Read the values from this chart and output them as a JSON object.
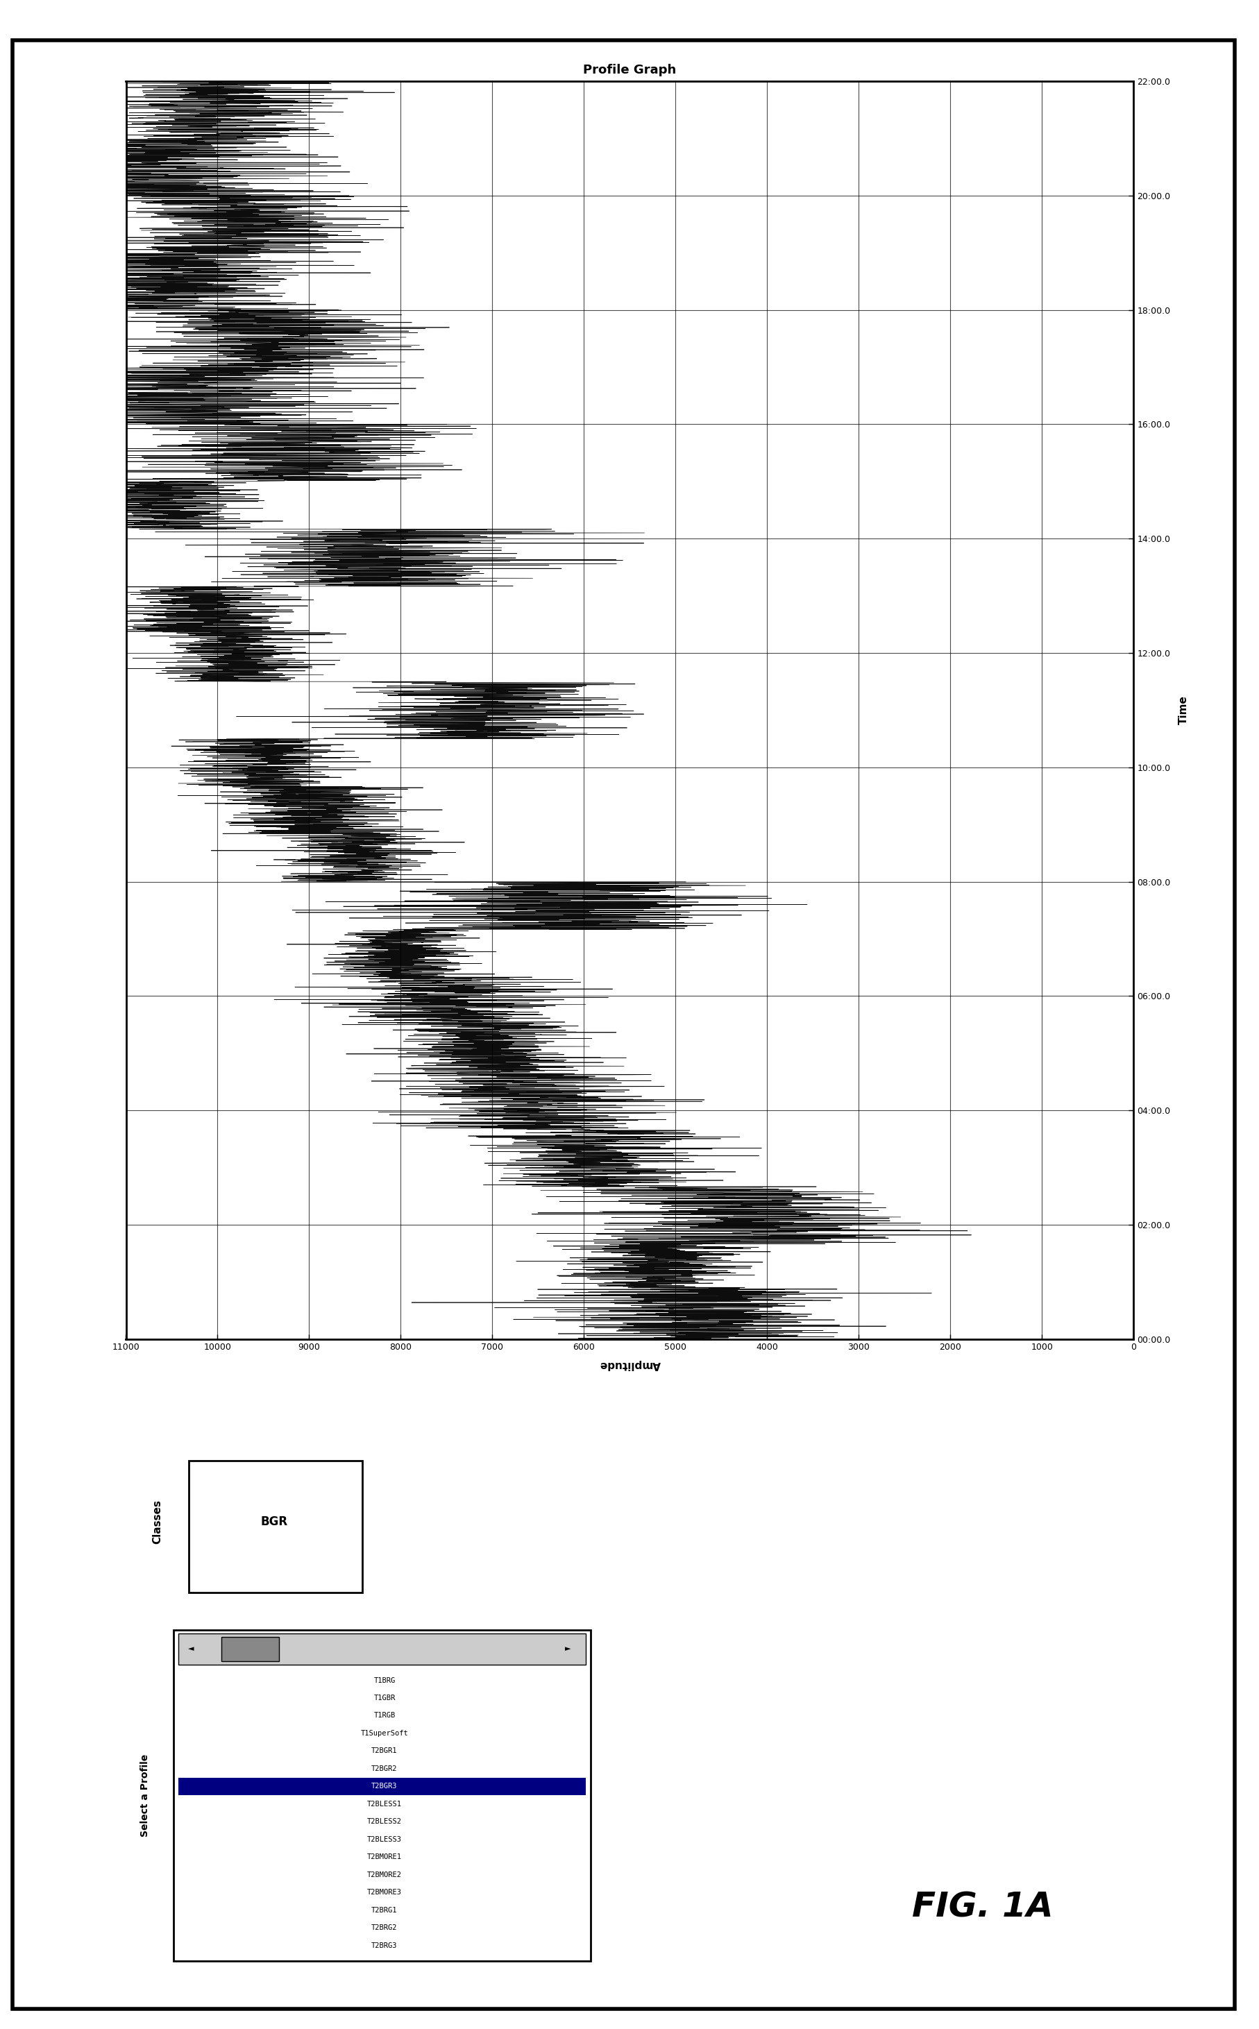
{
  "title": "Profile Graph",
  "time_label": "Time",
  "amplitude_label": "Amplitude",
  "fig_caption": "FIG. 1A",
  "bg_color": "#ffffff",
  "ylim_time_minutes": [
    0,
    1320
  ],
  "xlim_amplitude": [
    0,
    11000
  ],
  "ytick_labels": [
    "00:00.0",
    "02:00.0",
    "04:00.0",
    "06:00.0",
    "08:00.0",
    "10:00.0",
    "12:00.0",
    "14:00.0",
    "16:00.0",
    "18:00.0",
    "20:00.0",
    "22:00.0"
  ],
  "ytick_minutes": [
    0,
    120,
    240,
    360,
    480,
    600,
    720,
    840,
    960,
    1080,
    1200,
    1320
  ],
  "xticks": [
    0,
    1000,
    2000,
    3000,
    4000,
    5000,
    6000,
    7000,
    8000,
    9000,
    10000,
    11000
  ],
  "steps": [
    {
      "t_start": 0,
      "t_end": 55,
      "base": 4800,
      "noise_amp": 800,
      "hline_amp": 4800
    },
    {
      "t_start": 55,
      "t_end": 100,
      "base": 5200,
      "noise_amp": 500,
      "hline_amp": 5200
    },
    {
      "t_start": 100,
      "t_end": 160,
      "base": 4200,
      "noise_amp": 900,
      "hline_amp": 4200
    },
    {
      "t_start": 160,
      "t_end": 220,
      "base": 5800,
      "noise_amp": 600,
      "hline_amp": 5800
    },
    {
      "t_start": 220,
      "t_end": 280,
      "base": 6500,
      "noise_amp": 700,
      "hline_amp": 6500
    },
    {
      "t_start": 280,
      "t_end": 330,
      "base": 7000,
      "noise_amp": 500,
      "hline_amp": 7000
    },
    {
      "t_start": 330,
      "t_end": 380,
      "base": 7500,
      "noise_amp": 600,
      "hline_amp": 7500
    },
    {
      "t_start": 380,
      "t_end": 430,
      "base": 8000,
      "noise_amp": 400,
      "hline_amp": 8000
    },
    {
      "t_start": 430,
      "t_end": 480,
      "base": 6200,
      "noise_amp": 1000,
      "hline_amp": 6200
    },
    {
      "t_start": 480,
      "t_end": 530,
      "base": 8500,
      "noise_amp": 400,
      "hline_amp": 8500
    },
    {
      "t_start": 530,
      "t_end": 580,
      "base": 9000,
      "noise_amp": 500,
      "hline_amp": 9000
    },
    {
      "t_start": 580,
      "t_end": 630,
      "base": 9500,
      "noise_amp": 400,
      "hline_amp": 9500
    },
    {
      "t_start": 630,
      "t_end": 690,
      "base": 7200,
      "noise_amp": 800,
      "hline_amp": 7200
    },
    {
      "t_start": 690,
      "t_end": 740,
      "base": 9800,
      "noise_amp": 400,
      "hline_amp": 9800
    },
    {
      "t_start": 740,
      "t_end": 790,
      "base": 10200,
      "noise_amp": 500,
      "hline_amp": 10200
    },
    {
      "t_start": 790,
      "t_end": 850,
      "base": 8200,
      "noise_amp": 900,
      "hline_amp": 8200
    },
    {
      "t_start": 850,
      "t_end": 900,
      "base": 10600,
      "noise_amp": 500,
      "hline_amp": 10600
    },
    {
      "t_start": 900,
      "t_end": 960,
      "base": 9200,
      "noise_amp": 900,
      "hline_amp": 9200
    },
    {
      "t_start": 960,
      "t_end": 1020,
      "base": 10300,
      "noise_amp": 900,
      "hline_amp": 10300
    },
    {
      "t_start": 1020,
      "t_end": 1080,
      "base": 9500,
      "noise_amp": 700,
      "hline_amp": 9500
    },
    {
      "t_start": 1080,
      "t_end": 1140,
      "base": 10500,
      "noise_amp": 800,
      "hline_amp": 10500
    },
    {
      "t_start": 1140,
      "t_end": 1200,
      "base": 9800,
      "noise_amp": 700,
      "hline_amp": 9800
    },
    {
      "t_start": 1200,
      "t_end": 1260,
      "base": 10800,
      "noise_amp": 900,
      "hline_amp": 10800
    },
    {
      "t_start": 1260,
      "t_end": 1320,
      "base": 10000,
      "noise_amp": 600,
      "hline_amp": 10000
    }
  ],
  "select_profile_items": [
    "T1BRG",
    "T1GBR",
    "T1RGB",
    "T1SuperSoft",
    "T2BGR1",
    "T2BGR2",
    "T2BGR3",
    "T2BLESS1",
    "T2BLESS2",
    "T2BLESS3",
    "T2BMORE1",
    "T2BMORE2",
    "T2BMORE3",
    "T2BRG1",
    "T2BRG2",
    "T2BRG3"
  ],
  "selected_profile": "T2BGR3",
  "classes_value": "BGR"
}
